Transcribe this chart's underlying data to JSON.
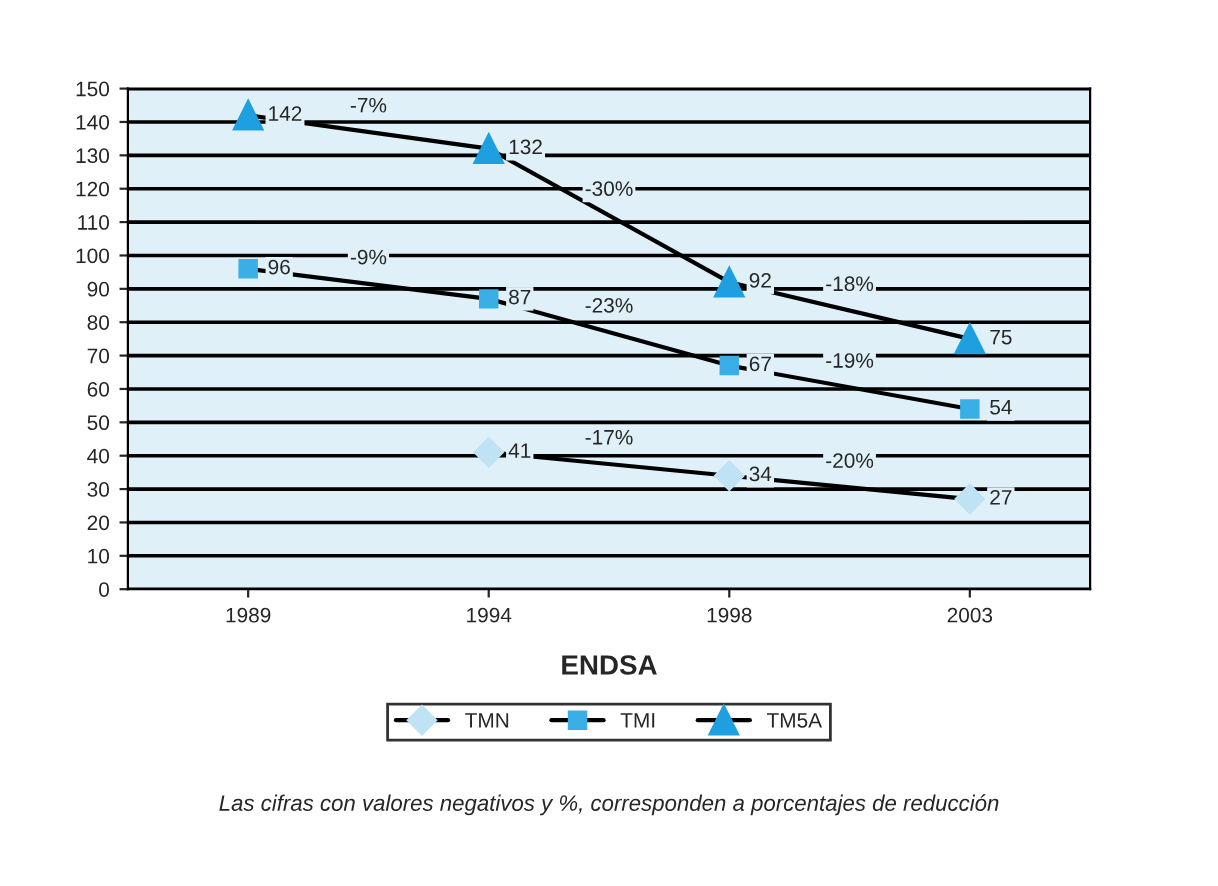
{
  "chart_data": {
    "type": "line",
    "xlabel": "ENDSA",
    "categories": [
      "1989",
      "1994",
      "1998",
      "2003"
    ],
    "series": [
      {
        "name": "TMN",
        "color": "#bfe3f5",
        "marker": "diamond",
        "values": [
          null,
          41,
          34,
          27
        ]
      },
      {
        "name": "TMI",
        "color": "#3aaee6",
        "marker": "square",
        "values": [
          96,
          87,
          67,
          54
        ]
      },
      {
        "name": "TM5A",
        "color": "#1e9fe0",
        "marker": "triangle",
        "values": [
          142,
          132,
          92,
          75
        ]
      }
    ],
    "ylim": [
      0,
      150
    ],
    "yticks": [
      0,
      10,
      20,
      30,
      40,
      50,
      60,
      70,
      80,
      90,
      100,
      110,
      120,
      130,
      140,
      150
    ],
    "grid": "y",
    "legend": "bottom",
    "data_labels": true,
    "line_style": "solid",
    "annotations": [
      "-7%",
      "-30%",
      "-18%",
      "-9%",
      "-23%",
      "-19%",
      "-17%",
      "-20%",
      "Las cifras con valores negativos y %, corresponden a porcentajes de reducción"
    ]
  }
}
